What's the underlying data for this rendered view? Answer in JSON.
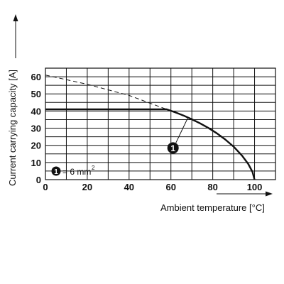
{
  "chart_data": {
    "type": "line",
    "xlabel": "Ambient temperature [°C]",
    "ylabel": "Current carrying capacity [A]",
    "xlim": [
      0,
      110
    ],
    "ylim": [
      0,
      65
    ],
    "x_ticks": [
      0,
      20,
      40,
      60,
      80,
      100
    ],
    "y_ticks": [
      0,
      10,
      20,
      30,
      40,
      50,
      60
    ],
    "grid": true,
    "series": [
      {
        "name": "1",
        "style": "solid",
        "x": [
          0,
          58,
          62,
          66,
          70,
          74,
          78,
          82,
          86,
          90,
          94,
          97,
          99,
          100
        ],
        "y": [
          41,
          41,
          39.3,
          37.4,
          35.2,
          32.8,
          30.1,
          27.0,
          23.4,
          19.2,
          14.0,
          9.1,
          4.5,
          0
        ]
      },
      {
        "style": "dashed",
        "x": [
          0,
          20,
          40,
          58
        ],
        "y": [
          61,
          55.6,
          49.1,
          41
        ]
      }
    ],
    "annotations": [
      {
        "label": "1",
        "x": 61,
        "y": 18.5,
        "points_to": [
          68,
          35.8
        ]
      }
    ],
    "legend": {
      "marker": "1",
      "text": "= 6 mm",
      "superscript": "2",
      "placement": "bottom-left"
    },
    "colors": {
      "line": "#111111",
      "grid": "#111111",
      "marker_fill": "#111111",
      "marker_text": "#ffffff"
    }
  }
}
